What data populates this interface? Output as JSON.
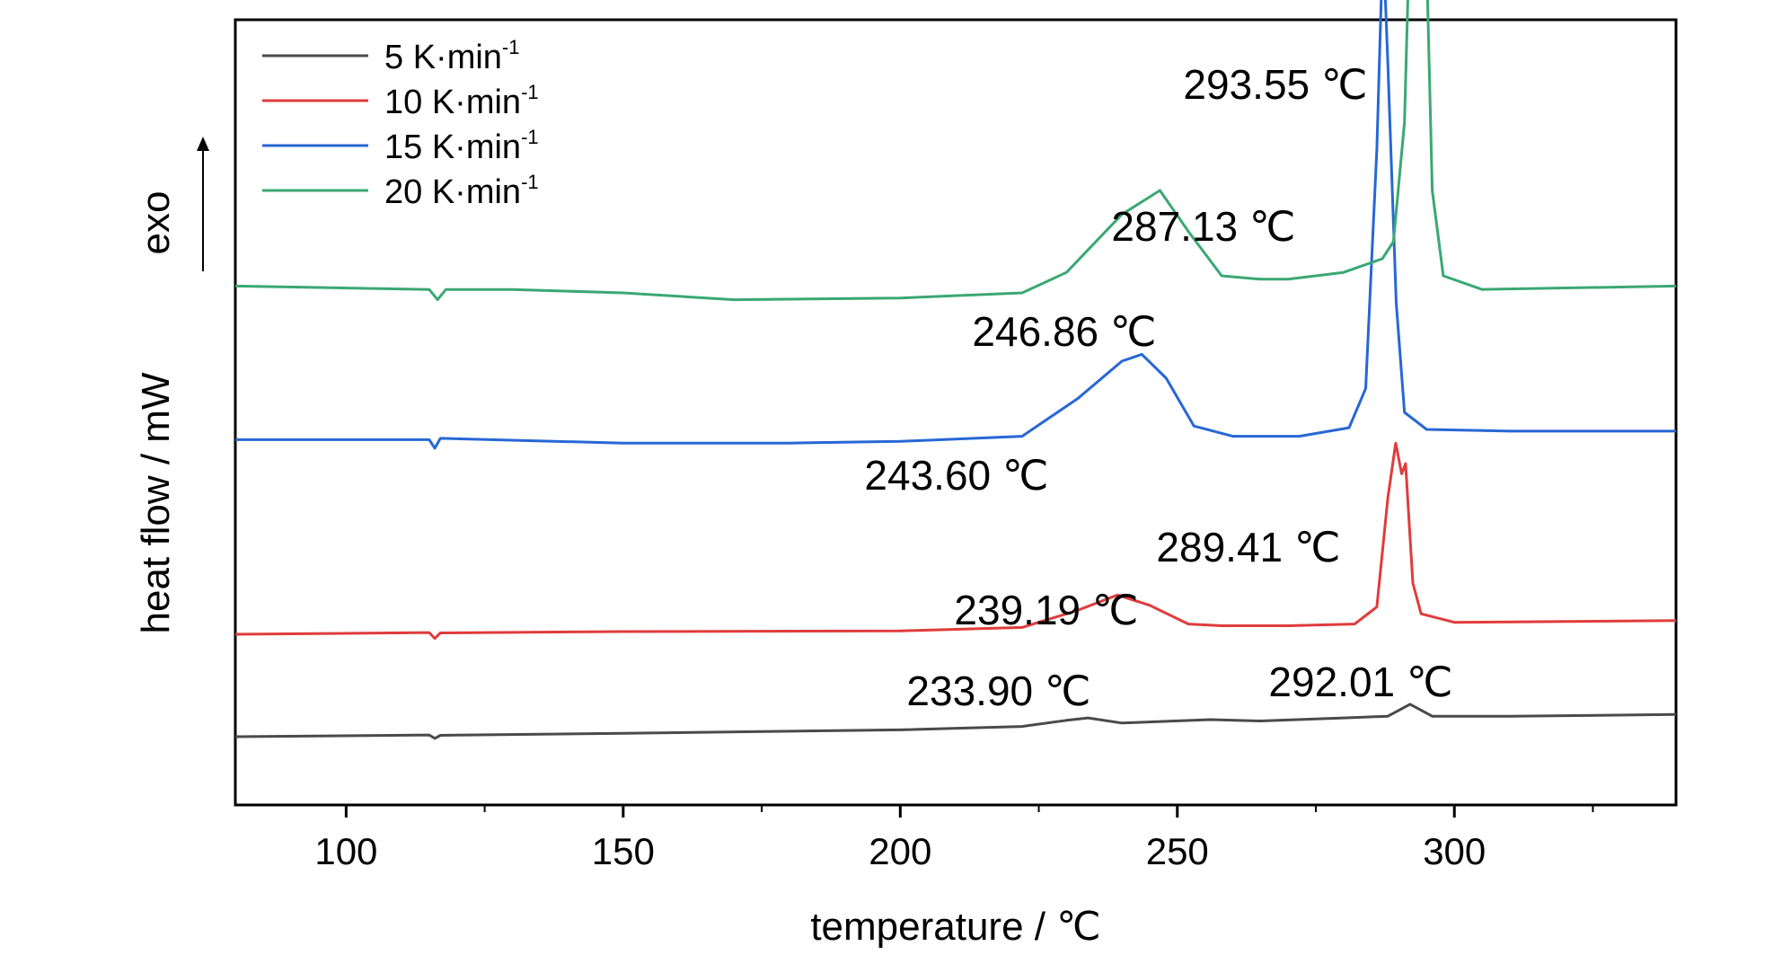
{
  "chart_data": {
    "type": "line",
    "xlabel": "temperature / ℃",
    "ylabel": "heat flow / mW",
    "exo_label": "exo",
    "xlim": [
      80,
      340
    ],
    "x_ticks": [
      100,
      150,
      200,
      250,
      300
    ],
    "y_ticks_shown": false,
    "grid": false,
    "legend_position": "top-left",
    "series": [
      {
        "name": "5 K·min",
        "name_superscript": "-1",
        "color": "#4a4a4a",
        "offset": 0.0,
        "points": [
          [
            80,
            0.0
          ],
          [
            115,
            0.005
          ],
          [
            116,
            -0.005
          ],
          [
            117,
            0.004
          ],
          [
            150,
            0.01
          ],
          [
            200,
            0.02
          ],
          [
            222,
            0.03
          ],
          [
            230,
            0.048
          ],
          [
            233.9,
            0.055
          ],
          [
            240,
            0.04
          ],
          [
            248,
            0.045
          ],
          [
            256,
            0.05
          ],
          [
            265,
            0.046
          ],
          [
            280,
            0.055
          ],
          [
            288,
            0.06
          ],
          [
            292.01,
            0.095
          ],
          [
            296,
            0.06
          ],
          [
            310,
            0.06
          ],
          [
            340,
            0.065
          ]
        ],
        "peak_labels": [
          "233.90 ℃",
          "292.01 ℃"
        ]
      },
      {
        "name": "10 K·min",
        "name_superscript": "-1",
        "color": "#e03c3c",
        "offset": 0.3,
        "points": [
          [
            80,
            0.0
          ],
          [
            115,
            0.005
          ],
          [
            116,
            -0.012
          ],
          [
            117,
            0.004
          ],
          [
            150,
            0.008
          ],
          [
            200,
            0.01
          ],
          [
            222,
            0.02
          ],
          [
            232,
            0.07
          ],
          [
            239.19,
            0.115
          ],
          [
            245,
            0.085
          ],
          [
            252,
            0.03
          ],
          [
            258,
            0.025
          ],
          [
            270,
            0.025
          ],
          [
            282,
            0.03
          ],
          [
            286,
            0.08
          ],
          [
            288,
            0.4
          ],
          [
            289.41,
            0.56
          ],
          [
            290.5,
            0.47
          ],
          [
            291.2,
            0.5
          ],
          [
            292.5,
            0.15
          ],
          [
            294,
            0.06
          ],
          [
            300,
            0.035
          ],
          [
            340,
            0.04
          ]
        ],
        "peak_labels": [
          "239.19 ℃",
          "289.41 ℃"
        ]
      },
      {
        "name": "15 K·min",
        "name_superscript": "-1",
        "color": "#2767d6",
        "offset": 0.87,
        "points": [
          [
            80,
            0.0
          ],
          [
            115,
            0.0
          ],
          [
            116,
            -0.025
          ],
          [
            117,
            0.004
          ],
          [
            150,
            -0.01
          ],
          [
            180,
            -0.01
          ],
          [
            200,
            -0.005
          ],
          [
            222,
            0.01
          ],
          [
            232,
            0.12
          ],
          [
            240,
            0.23
          ],
          [
            243.6,
            0.25
          ],
          [
            248,
            0.18
          ],
          [
            253,
            0.04
          ],
          [
            260,
            0.01
          ],
          [
            272,
            0.01
          ],
          [
            281,
            0.035
          ],
          [
            284,
            0.15
          ],
          [
            286,
            0.85
          ],
          [
            287.13,
            1.47
          ],
          [
            288,
            1.1
          ],
          [
            289.5,
            0.4
          ],
          [
            291,
            0.08
          ],
          [
            295,
            0.03
          ],
          [
            310,
            0.025
          ],
          [
            340,
            0.025
          ]
        ],
        "peak_labels": [
          "243.60 ℃",
          "287.13 ℃"
        ]
      },
      {
        "name": "20 K·min",
        "name_superscript": "-1",
        "color": "#3aa873",
        "offset": 1.3,
        "points": [
          [
            80,
            0.02
          ],
          [
            115,
            0.01
          ],
          [
            116.5,
            -0.02
          ],
          [
            118,
            0.01
          ],
          [
            130,
            0.01
          ],
          [
            150,
            0.0
          ],
          [
            170,
            -0.02
          ],
          [
            200,
            -0.015
          ],
          [
            222,
            0.0
          ],
          [
            230,
            0.06
          ],
          [
            240,
            0.23
          ],
          [
            246.86,
            0.3
          ],
          [
            252,
            0.18
          ],
          [
            258,
            0.05
          ],
          [
            265,
            0.04
          ],
          [
            270,
            0.04
          ],
          [
            280,
            0.06
          ],
          [
            287,
            0.1
          ],
          [
            289,
            0.15
          ],
          [
            291,
            0.5
          ],
          [
            292.5,
            1.4
          ],
          [
            293.55,
            2.0
          ],
          [
            294.5,
            1.3
          ],
          [
            296,
            0.3
          ],
          [
            298,
            0.05
          ],
          [
            305,
            0.01
          ],
          [
            340,
            0.02
          ]
        ],
        "peak_labels": [
          "246.86 ℃",
          "293.55 ℃"
        ]
      }
    ]
  }
}
